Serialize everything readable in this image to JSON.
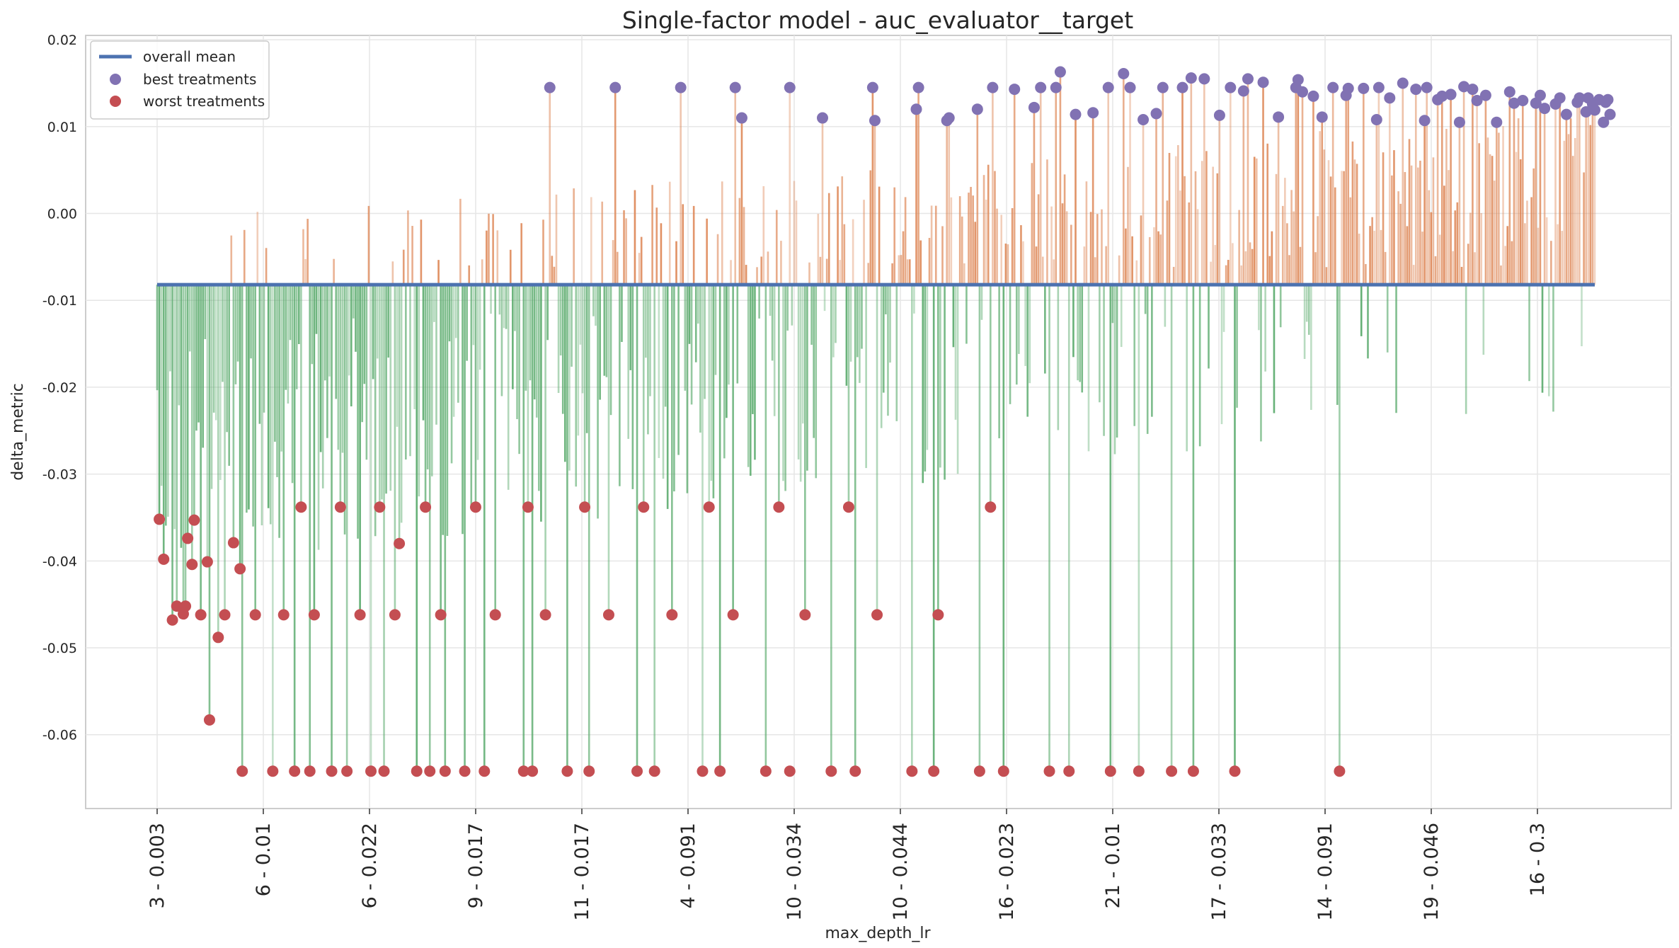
{
  "chart_data": {
    "type": "bar",
    "title": "Single-factor model - auc_evaluator__target",
    "xlabel": "max_depth_lr",
    "ylabel": "delta_metric",
    "ylim": [
      -0.0685,
      0.0205
    ],
    "grid": true,
    "legend_position": "top-left",
    "yticks": [
      0.02,
      0.01,
      0.0,
      -0.01,
      -0.02,
      -0.03,
      -0.04,
      -0.05,
      -0.06
    ],
    "ytick_labels": [
      "0.02",
      "0.01",
      "0.00",
      "-0.01",
      "-0.02",
      "-0.03",
      "-0.04",
      "-0.05",
      "-0.06"
    ],
    "xtick_labels": [
      "3 - 0.003",
      "6 - 0.01",
      "6 - 0.022",
      "9 - 0.017",
      "11 - 0.017",
      "4 - 0.091",
      "10 - 0.034",
      "10 - 0.044",
      "16 - 0.023",
      "21 - 0.01",
      "17 - 0.033",
      "14 - 0.091",
      "19 - 0.046",
      "16 - 0.3"
    ],
    "n_treatments": 660,
    "overall_mean": -0.0082,
    "series": [
      {
        "name": "overall mean",
        "kind": "line",
        "color": "#4c72b0"
      },
      {
        "name": "best treatments",
        "kind": "scatter",
        "color": "#8172b3"
      },
      {
        "name": "worst treatments",
        "kind": "scatter",
        "color": "#c44e52"
      }
    ],
    "bar_colors": {
      "above_mean": "#dd8452",
      "below_mean": "#55a868"
    },
    "best_points": [
      [
        180,
        0.0145
      ],
      [
        210,
        0.0145
      ],
      [
        240,
        0.0145
      ],
      [
        265,
        0.0145
      ],
      [
        268,
        0.011
      ],
      [
        290,
        0.0145
      ],
      [
        305,
        0.011
      ],
      [
        328,
        0.0145
      ],
      [
        329,
        0.0107
      ],
      [
        349,
        0.0145
      ],
      [
        348,
        0.012
      ],
      [
        362,
        0.0107
      ],
      [
        363,
        0.011
      ],
      [
        376,
        0.012
      ],
      [
        383,
        0.0145
      ],
      [
        393,
        0.0143
      ],
      [
        402,
        0.0122
      ],
      [
        405,
        0.0145
      ],
      [
        412,
        0.0145
      ],
      [
        414,
        0.0163
      ],
      [
        421,
        0.0114
      ],
      [
        429,
        0.0116
      ],
      [
        436,
        0.0145
      ],
      [
        443,
        0.0161
      ],
      [
        446,
        0.0145
      ],
      [
        452,
        0.0108
      ],
      [
        458,
        0.0115
      ],
      [
        461,
        0.0145
      ],
      [
        470,
        0.0145
      ],
      [
        474,
        0.0156
      ],
      [
        480,
        0.0155
      ],
      [
        487,
        0.0113
      ],
      [
        492,
        0.0145
      ],
      [
        498,
        0.0141
      ],
      [
        500,
        0.0155
      ],
      [
        507,
        0.0151
      ],
      [
        514,
        0.0111
      ],
      [
        522,
        0.0145
      ],
      [
        523,
        0.0154
      ],
      [
        525,
        0.014
      ],
      [
        530,
        0.0135
      ],
      [
        534,
        0.0111
      ],
      [
        539,
        0.0145
      ],
      [
        545,
        0.0136
      ],
      [
        546,
        0.0144
      ],
      [
        553,
        0.0144
      ],
      [
        559,
        0.0108
      ],
      [
        560,
        0.0145
      ],
      [
        565,
        0.0133
      ],
      [
        571,
        0.015
      ],
      [
        577,
        0.0143
      ],
      [
        581,
        0.0107
      ],
      [
        582,
        0.0145
      ],
      [
        587,
        0.0131
      ],
      [
        589,
        0.0135
      ],
      [
        593,
        0.0137
      ],
      [
        597,
        0.0105
      ],
      [
        599,
        0.0146
      ],
      [
        603,
        0.0143
      ],
      [
        605,
        0.013
      ],
      [
        609,
        0.0136
      ],
      [
        614,
        0.0105
      ],
      [
        620,
        0.014
      ],
      [
        622,
        0.0127
      ],
      [
        626,
        0.013
      ],
      [
        632,
        0.0127
      ],
      [
        634,
        0.0136
      ],
      [
        636,
        0.0121
      ],
      [
        641,
        0.0126
      ],
      [
        643,
        0.0133
      ],
      [
        646,
        0.0114
      ],
      [
        651,
        0.0128
      ],
      [
        652,
        0.0133
      ],
      [
        655,
        0.0117
      ],
      [
        656,
        0.0133
      ],
      [
        658,
        0.0126
      ],
      [
        659,
        0.0119
      ],
      [
        661,
        0.0131
      ],
      [
        663,
        0.0105
      ],
      [
        664,
        0.0128
      ],
      [
        665,
        0.0131
      ],
      [
        666,
        0.0114
      ]
    ],
    "worst_points": [
      [
        1,
        -0.0352
      ],
      [
        3,
        -0.0398
      ],
      [
        7,
        -0.0468
      ],
      [
        9,
        -0.0452
      ],
      [
        12,
        -0.0461
      ],
      [
        13,
        -0.0452
      ],
      [
        14,
        -0.0374
      ],
      [
        16,
        -0.0404
      ],
      [
        17,
        -0.0353
      ],
      [
        20,
        -0.0462
      ],
      [
        23,
        -0.0401
      ],
      [
        24,
        -0.0583
      ],
      [
        28,
        -0.0488
      ],
      [
        31,
        -0.0462
      ],
      [
        35,
        -0.0379
      ],
      [
        38,
        -0.0409
      ],
      [
        39,
        -0.0642
      ],
      [
        45,
        -0.0462
      ],
      [
        53,
        -0.0642
      ],
      [
        58,
        -0.0462
      ],
      [
        63,
        -0.0642
      ],
      [
        66,
        -0.0338
      ],
      [
        70,
        -0.0642
      ],
      [
        72,
        -0.0462
      ],
      [
        80,
        -0.0642
      ],
      [
        84,
        -0.0338
      ],
      [
        87,
        -0.0642
      ],
      [
        93,
        -0.0462
      ],
      [
        98,
        -0.0642
      ],
      [
        102,
        -0.0338
      ],
      [
        104,
        -0.0642
      ],
      [
        109,
        -0.0462
      ],
      [
        111,
        -0.038
      ],
      [
        119,
        -0.0642
      ],
      [
        123,
        -0.0338
      ],
      [
        125,
        -0.0642
      ],
      [
        130,
        -0.0462
      ],
      [
        132,
        -0.0642
      ],
      [
        141,
        -0.0642
      ],
      [
        146,
        -0.0338
      ],
      [
        150,
        -0.0642
      ],
      [
        155,
        -0.0462
      ],
      [
        168,
        -0.0642
      ],
      [
        170,
        -0.0338
      ],
      [
        172,
        -0.0642
      ],
      [
        178,
        -0.0462
      ],
      [
        188,
        -0.0642
      ],
      [
        196,
        -0.0338
      ],
      [
        198,
        -0.0642
      ],
      [
        207,
        -0.0462
      ],
      [
        220,
        -0.0642
      ],
      [
        223,
        -0.0338
      ],
      [
        228,
        -0.0642
      ],
      [
        236,
        -0.0462
      ],
      [
        250,
        -0.0642
      ],
      [
        253,
        -0.0338
      ],
      [
        258,
        -0.0642
      ],
      [
        264,
        -0.0462
      ],
      [
        279,
        -0.0642
      ],
      [
        285,
        -0.0338
      ],
      [
        290,
        -0.0642
      ],
      [
        297,
        -0.0462
      ],
      [
        309,
        -0.0642
      ],
      [
        317,
        -0.0338
      ],
      [
        320,
        -0.0642
      ],
      [
        330,
        -0.0462
      ],
      [
        346,
        -0.0642
      ],
      [
        356,
        -0.0642
      ],
      [
        358,
        -0.0462
      ],
      [
        377,
        -0.0642
      ],
      [
        382,
        -0.0338
      ],
      [
        388,
        -0.0642
      ],
      [
        409,
        -0.0642
      ],
      [
        418,
        -0.0642
      ],
      [
        437,
        -0.0642
      ],
      [
        450,
        -0.0642
      ],
      [
        465,
        -0.0642
      ],
      [
        475,
        -0.0642
      ],
      [
        494,
        -0.0642
      ],
      [
        542,
        -0.0642
      ]
    ]
  }
}
